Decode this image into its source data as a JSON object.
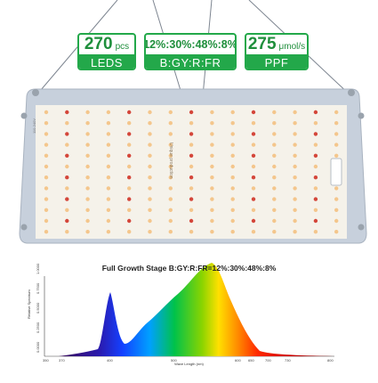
{
  "badges": {
    "leds": {
      "number": "270",
      "unit": "pcs",
      "label": "LEDS"
    },
    "ratio": {
      "value": "12%:30%:48%:8%",
      "label": "B:GY:R:FR"
    },
    "ppf": {
      "number": "275",
      "unit": "μmol/s",
      "label": "PPF"
    }
  },
  "panel": {
    "vertical_text": "Unique production",
    "side_text": "110-240V"
  },
  "chart": {
    "title": "Full Growth Stage B:GY:R:FR=12%:30%:48%:8%",
    "ylabel": "Relative Spectrum",
    "xlabel": "Wave Length (nm)",
    "xticks": [
      "350",
      "370",
      "400",
      "500",
      "600",
      "650",
      "700",
      "730",
      "800"
    ],
    "yticks": [
      "0.0000",
      "0.2500",
      "0.5000",
      "0.7500",
      "1.0000"
    ]
  },
  "colors": {
    "badge_green": "#23a84a",
    "panel_frame": "#c7d0dc",
    "board_white": "#f5f2ea",
    "led_warm": "#f4c68c",
    "led_red": "#d4463a"
  }
}
